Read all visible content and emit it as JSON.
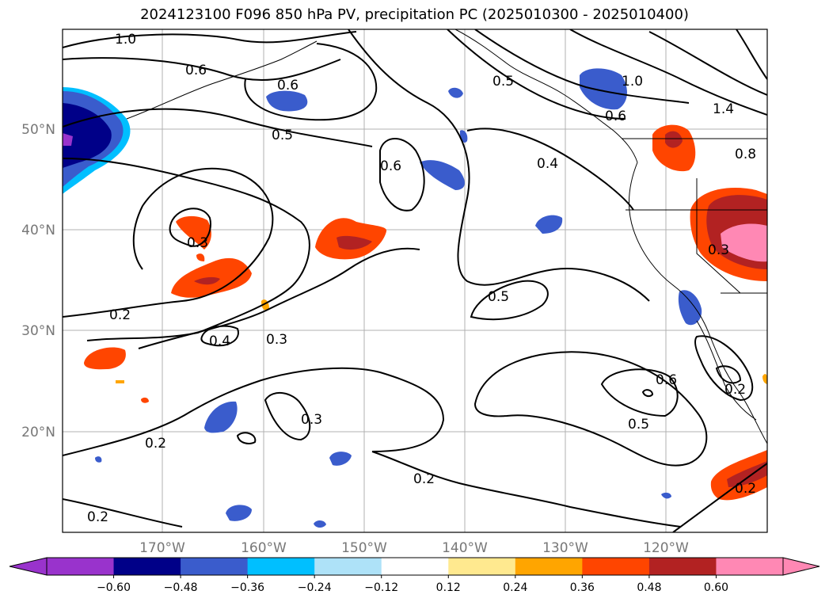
{
  "title": "2024123100 F096 850 hPa PV, precipitation PC (2025010300 - 2025010400)",
  "map": {
    "lon_labels": [
      "170°W",
      "160°W",
      "150°W",
      "140°W",
      "130°W",
      "120°W"
    ],
    "lat_labels": [
      "50°N",
      "40°N",
      "30°N",
      "20°N"
    ],
    "contour_labels": [
      "1.0",
      "0.6",
      "0.6",
      "0.5",
      "0.6",
      "0.5",
      "0.4",
      "1.0",
      "0.6",
      "1.4",
      "0.8",
      "0.3",
      "0.3",
      "0.2",
      "0.4",
      "0.3",
      "0.5",
      "0.6",
      "0.5",
      "0.2",
      "0.2",
      "0.2",
      "0.2",
      "0.3",
      "0.2"
    ]
  },
  "colorbar": {
    "ticks": [
      "−0.60",
      "−0.48",
      "−0.36",
      "−0.24",
      "−0.12",
      "0.12",
      "0.24",
      "0.36",
      "0.48",
      "0.60"
    ],
    "colors": [
      "#9933cc",
      "#000088",
      "#3a5ccc",
      "#00bfff",
      "#aee2f8",
      "#ffffff",
      "#ffe98f",
      "#ffa500",
      "#ff4500",
      "#b22222",
      "#ff88b4",
      "#ff88b4"
    ]
  }
}
